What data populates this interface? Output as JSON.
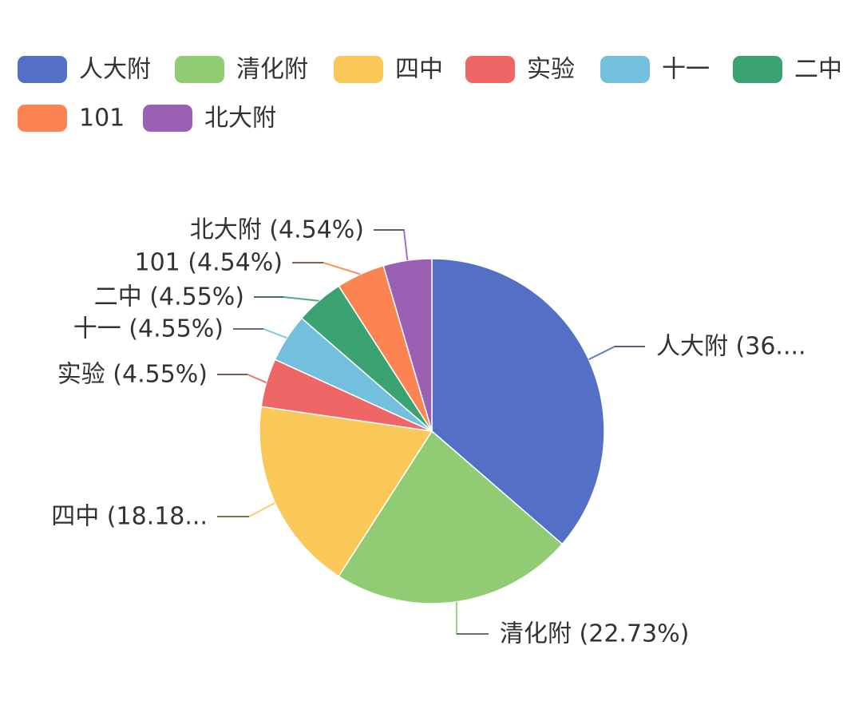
{
  "chart_data": {
    "type": "pie",
    "legend_position": "top",
    "categories": [
      "人大附",
      "清化附",
      "四中",
      "实验",
      "十一",
      "二中",
      "101",
      "北大附"
    ],
    "values": [
      36.36,
      22.73,
      18.18,
      4.55,
      4.55,
      4.55,
      4.54,
      4.54
    ],
    "colors": [
      "#5470c6",
      "#91cc75",
      "#fac858",
      "#ee6666",
      "#73c0de",
      "#3ba272",
      "#fc8452",
      "#9a60b4"
    ],
    "slice_labels": [
      "人大附 (36....",
      "清化附 (22.73%)",
      "四中 (18.18...",
      "实验 (4.55%)",
      "十一 (4.55%)",
      "二中 (4.55%)",
      "101 (4.54%)",
      "北大附 (4.54%)"
    ]
  }
}
